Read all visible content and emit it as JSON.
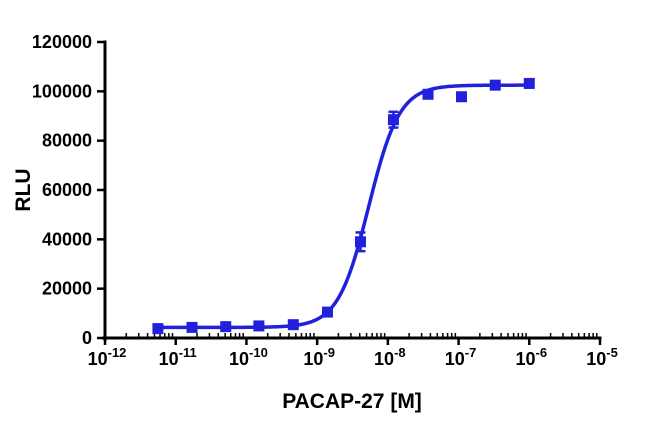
{
  "chart_data": {
    "type": "scatter",
    "title": "",
    "xlabel": "PACAP-27 [M]",
    "ylabel": "RLU",
    "x_scale": "log10",
    "x_log_range": [
      -12,
      -5
    ],
    "x_tick_exponents": [
      -12,
      -11,
      -10,
      -9,
      -8,
      -7,
      -6,
      -5
    ],
    "ylim": [
      0,
      120000
    ],
    "y_ticks": [
      0,
      20000,
      40000,
      60000,
      80000,
      100000,
      120000
    ],
    "grid": false,
    "legend": "none",
    "colors": {
      "series": "#2020dd",
      "axis": "#000000"
    },
    "series": [
      {
        "name": "PACAP-27",
        "marker": "square",
        "x": [
          5.6e-12,
          1.7e-11,
          5.1e-11,
          1.5e-10,
          4.6e-10,
          1.4e-09,
          4.1e-09,
          1.2e-08,
          3.7e-08,
          1.1e-07,
          3.3e-07,
          1e-06
        ],
        "y": [
          3800,
          4300,
          4600,
          4900,
          5400,
          10500,
          39000,
          88500,
          98800,
          97800,
          102500,
          103200
        ],
        "yerr": [
          400,
          400,
          400,
          400,
          500,
          900,
          3800,
          3200,
          1500,
          1200,
          700,
          900
        ]
      }
    ],
    "fit": {
      "model": "sigmoidal-dose-response",
      "bottom": 4300,
      "top": 102500,
      "logEC50": -8.27,
      "hill": 2.0,
      "draw_log_range": [
        -11.25,
        -6.0
      ]
    }
  }
}
